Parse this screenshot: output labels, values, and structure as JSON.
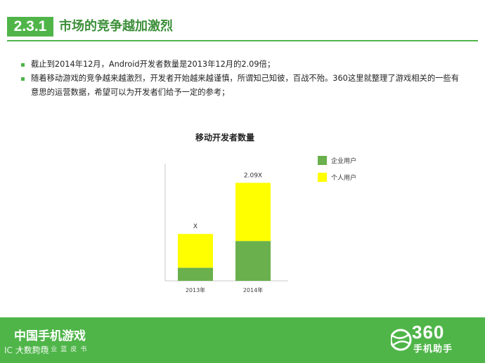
{
  "header": {
    "section_number": "2.3.1",
    "title": "市场的竞争越加激烈"
  },
  "bullets": [
    "截止到2014年12月，Android开发者数量是2013年12月的2.09倍；",
    "随着移动游戏的竞争越来越激烈，开发者开始越来越谨慎，所谓知己知彼，百战不殆。360这里就整理了游戏相关的一些有意思的运营数据，希望可以为开发者们给予一定的参考；"
  ],
  "chart_data": {
    "type": "bar",
    "stacked": true,
    "title": "移动开发者数量",
    "categories": [
      "2013年",
      "2014年"
    ],
    "series": [
      {
        "name": "企业用户",
        "color": "#6ab04c",
        "values": [
          0.28,
          0.85
        ]
      },
      {
        "name": "个人用户",
        "color": "#ffff00",
        "values": [
          0.72,
          1.24
        ]
      }
    ],
    "annotations": [
      "X",
      "2.09X"
    ],
    "legend_position": "right",
    "grid": false,
    "ylim": [
      0,
      2.5
    ]
  },
  "footer": {
    "title": "中国手机游戏",
    "subtitle": "ICC产业蓝皮书",
    "watermark": "IC 大数跨境",
    "logo_number": "360",
    "logo_subtitle": "手机助手"
  },
  "colors": {
    "brand_green": "#4fb549",
    "title_green": "#3d8f3a"
  }
}
